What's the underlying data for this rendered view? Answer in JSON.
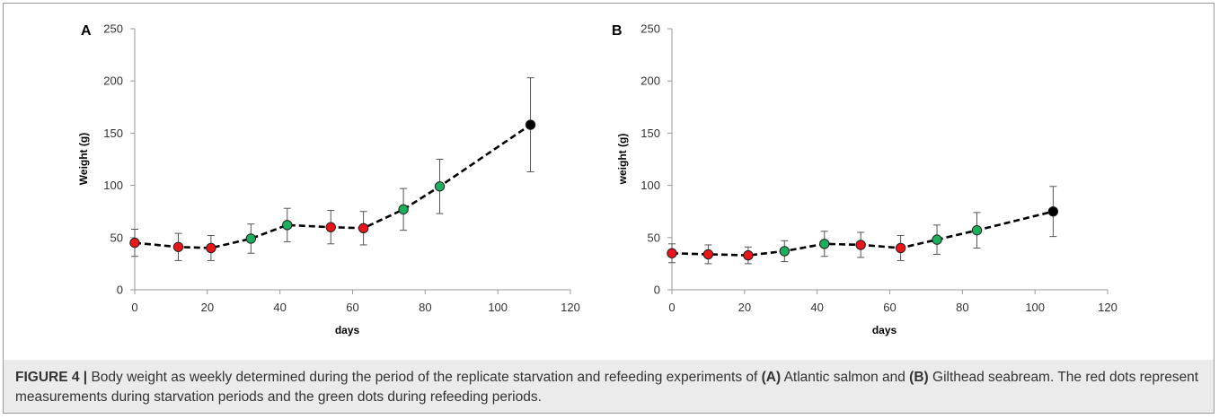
{
  "chart_data": [
    {
      "type": "scatter",
      "panel": "A",
      "xlabel": "days",
      "ylabel": "Weight (g)",
      "xlim": [
        0,
        120
      ],
      "ylim": [
        0,
        250
      ],
      "xticks": [
        0,
        20,
        40,
        60,
        80,
        100,
        120
      ],
      "yticks": [
        0,
        50,
        100,
        150,
        200,
        250
      ],
      "grid": false,
      "line_style": "dashed",
      "points": [
        {
          "x": 0,
          "y": 45,
          "err": 13,
          "color": "red"
        },
        {
          "x": 12,
          "y": 41,
          "err": 13,
          "color": "red"
        },
        {
          "x": 21,
          "y": 40,
          "err": 12,
          "color": "red"
        },
        {
          "x": 32,
          "y": 49,
          "err": 14,
          "color": "green"
        },
        {
          "x": 42,
          "y": 62,
          "err": 16,
          "color": "green"
        },
        {
          "x": 54,
          "y": 60,
          "err": 16,
          "color": "red"
        },
        {
          "x": 63,
          "y": 59,
          "err": 16,
          "color": "red"
        },
        {
          "x": 74,
          "y": 77,
          "err": 20,
          "color": "green"
        },
        {
          "x": 84,
          "y": 99,
          "err": 26,
          "color": "green"
        },
        {
          "x": 109,
          "y": 158,
          "err": 45,
          "color": "black"
        }
      ]
    },
    {
      "type": "scatter",
      "panel": "B",
      "xlabel": "days",
      "ylabel": "weight (g)",
      "xlim": [
        0,
        120
      ],
      "ylim": [
        0,
        250
      ],
      "xticks": [
        0,
        20,
        40,
        60,
        80,
        100,
        120
      ],
      "yticks": [
        0,
        50,
        100,
        150,
        200,
        250
      ],
      "grid": false,
      "line_style": "dashed",
      "points": [
        {
          "x": 0,
          "y": 35,
          "err": 9,
          "color": "red"
        },
        {
          "x": 10,
          "y": 34,
          "err": 9,
          "color": "red"
        },
        {
          "x": 21,
          "y": 33,
          "err": 8,
          "color": "red"
        },
        {
          "x": 31,
          "y": 37,
          "err": 10,
          "color": "green"
        },
        {
          "x": 42,
          "y": 44,
          "err": 12,
          "color": "green"
        },
        {
          "x": 52,
          "y": 43,
          "err": 12,
          "color": "red"
        },
        {
          "x": 63,
          "y": 40,
          "err": 12,
          "color": "red"
        },
        {
          "x": 73,
          "y": 48,
          "err": 14,
          "color": "green"
        },
        {
          "x": 84,
          "y": 57,
          "err": 17,
          "color": "green"
        },
        {
          "x": 105,
          "y": 75,
          "err": 24,
          "color": "black"
        }
      ]
    }
  ],
  "colors": {
    "red": "#e8161b",
    "green": "#1aaf5d",
    "black": "#000000",
    "line": "#000000",
    "errorbar": "#555555",
    "axis": "#9a9a9a"
  },
  "caption": {
    "label": "FIGURE 4 |",
    "text_1": " Body weight as weekly determined during the period of the replicate starvation and refeeding experiments of ",
    "panel_a": "(A)",
    "text_2": " Atlantic salmon and ",
    "panel_b": "(B)",
    "text_3": " Gilthead seabream. The red dots represent measurements during starvation periods and the green dots during refeeding periods."
  }
}
